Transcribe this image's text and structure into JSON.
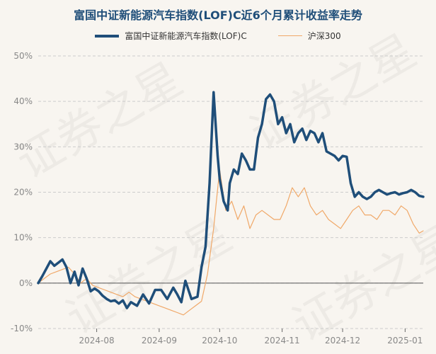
{
  "watermark": "证券之星",
  "colors": {
    "fund": "#1f4e79",
    "index": "#f0a868",
    "title": "#1f4e79",
    "zero": "#555555"
  },
  "chart_data": {
    "type": "line",
    "title": "富国中证新能源汽车指数(LOF)C近6个月累计收益率走势",
    "x_ticks": [
      "2024-08",
      "2024-09",
      "2024-10",
      "2024-11",
      "2024-12",
      "2025-01"
    ],
    "x_tick_dates": [
      "2024-08-01",
      "2024-09-01",
      "2024-10-01",
      "2024-11-01",
      "2024-12-01",
      "2025-01-01"
    ],
    "x_range": [
      "2024-07-03",
      "2025-01-10"
    ],
    "y_ticks": [
      "50%",
      "40%",
      "30%",
      "20%",
      "10%",
      "0%",
      "-10%"
    ],
    "y_tick_values": [
      50,
      40,
      30,
      20,
      10,
      0,
      -10
    ],
    "ylim": [
      -10,
      50
    ],
    "grid": true,
    "legend_position": "top",
    "series": [
      {
        "name": "富国中证新能源汽车指数(LOF)C",
        "x": [
          "2024-07-03",
          "2024-07-05",
          "2024-07-09",
          "2024-07-11",
          "2024-07-13",
          "2024-07-15",
          "2024-07-17",
          "2024-07-19",
          "2024-07-21",
          "2024-07-23",
          "2024-07-25",
          "2024-07-27",
          "2024-07-29",
          "2024-07-31",
          "2024-08-02",
          "2024-08-04",
          "2024-08-06",
          "2024-08-08",
          "2024-08-10",
          "2024-08-12",
          "2024-08-14",
          "2024-08-16",
          "2024-08-18",
          "2024-08-21",
          "2024-08-24",
          "2024-08-27",
          "2024-08-30",
          "2024-09-02",
          "2024-09-05",
          "2024-09-08",
          "2024-09-10",
          "2024-09-12",
          "2024-09-14",
          "2024-09-17",
          "2024-09-20",
          "2024-09-22",
          "2024-09-24",
          "2024-09-26",
          "2024-09-28",
          "2024-09-30",
          "2024-10-01",
          "2024-10-03",
          "2024-10-05",
          "2024-10-06",
          "2024-10-08",
          "2024-10-10",
          "2024-10-12",
          "2024-10-14",
          "2024-10-16",
          "2024-10-18",
          "2024-10-20",
          "2024-10-22",
          "2024-10-24",
          "2024-10-26",
          "2024-10-28",
          "2024-10-30",
          "2024-11-01",
          "2024-11-03",
          "2024-11-05",
          "2024-11-07",
          "2024-11-09",
          "2024-11-11",
          "2024-11-13",
          "2024-11-15",
          "2024-11-17",
          "2024-11-19",
          "2024-11-21",
          "2024-11-23",
          "2024-11-25",
          "2024-11-27",
          "2024-11-29",
          "2024-12-01",
          "2024-12-03",
          "2024-12-05",
          "2024-12-07",
          "2024-12-09",
          "2024-12-11",
          "2024-12-13",
          "2024-12-15",
          "2024-12-17",
          "2024-12-19",
          "2024-12-21",
          "2024-12-23",
          "2024-12-25",
          "2024-12-27",
          "2024-12-29",
          "2024-12-31",
          "2025-01-02",
          "2025-01-04",
          "2025-01-06",
          "2025-01-08",
          "2025-01-10"
        ],
        "y": [
          0,
          1.5,
          4.8,
          3.8,
          4.5,
          5.2,
          3.5,
          0,
          2.5,
          -0.5,
          3.2,
          1,
          -1.8,
          -1.2,
          -1.8,
          -2.8,
          -3.5,
          -4,
          -3.8,
          -4.5,
          -3.8,
          -5.5,
          -4.2,
          -5,
          -2.5,
          -4.5,
          -1.5,
          -1.5,
          -3.5,
          -1,
          -2.5,
          -4.2,
          0.5,
          -3.5,
          -3,
          3.5,
          8,
          22,
          42,
          28,
          23,
          18,
          16,
          22,
          25,
          24,
          28.5,
          27,
          25,
          25,
          32,
          35,
          40.5,
          41.5,
          40,
          35,
          36.5,
          33,
          35,
          31,
          33,
          34,
          31.5,
          33.5,
          33,
          31,
          33,
          29,
          28.5,
          28,
          27,
          28,
          27.8,
          22,
          19,
          20,
          19,
          18.5,
          19,
          20,
          20.5,
          20,
          19.5,
          19.8,
          20,
          19.5,
          19.8,
          20,
          20.5,
          20,
          19.2,
          19
        ],
        "color": "#1f4e79"
      },
      {
        "name": "沪深300",
        "x": [
          "2024-07-03",
          "2024-07-06",
          "2024-07-09",
          "2024-07-12",
          "2024-07-15",
          "2024-07-18",
          "2024-07-21",
          "2024-07-24",
          "2024-07-27",
          "2024-07-30",
          "2024-08-02",
          "2024-08-05",
          "2024-08-08",
          "2024-08-11",
          "2024-08-14",
          "2024-08-17",
          "2024-08-20",
          "2024-08-23",
          "2024-08-26",
          "2024-08-29",
          "2024-09-01",
          "2024-09-04",
          "2024-09-07",
          "2024-09-10",
          "2024-09-13",
          "2024-09-16",
          "2024-09-19",
          "2024-09-22",
          "2024-09-25",
          "2024-09-28",
          "2024-10-01",
          "2024-10-04",
          "2024-10-07",
          "2024-10-10",
          "2024-10-13",
          "2024-10-16",
          "2024-10-19",
          "2024-10-22",
          "2024-10-25",
          "2024-10-28",
          "2024-10-31",
          "2024-11-03",
          "2024-11-06",
          "2024-11-09",
          "2024-11-12",
          "2024-11-15",
          "2024-11-18",
          "2024-11-21",
          "2024-11-24",
          "2024-11-27",
          "2024-11-30",
          "2024-12-03",
          "2024-12-06",
          "2024-12-09",
          "2024-12-12",
          "2024-12-15",
          "2024-12-18",
          "2024-12-21",
          "2024-12-24",
          "2024-12-27",
          "2024-12-30",
          "2025-01-02",
          "2025-01-05",
          "2025-01-08",
          "2025-01-10"
        ],
        "y": [
          0,
          1,
          2,
          2.5,
          3,
          3.5,
          2,
          0,
          1,
          -0.5,
          -1,
          -1.5,
          -2,
          -2.5,
          -3,
          -2,
          -3,
          -3.5,
          -4,
          -4.5,
          -5,
          -5.5,
          -6,
          -6.5,
          -7,
          -6,
          -5,
          -4,
          2,
          12,
          25,
          16,
          18,
          14,
          17,
          12,
          15,
          16,
          15,
          14,
          14,
          17,
          21,
          19,
          21,
          17,
          15,
          16,
          14,
          13,
          12,
          14,
          16,
          17,
          15,
          15,
          14,
          16,
          16,
          15,
          17,
          16,
          13,
          11,
          11.5
        ],
        "color": "#f0a868"
      }
    ]
  }
}
